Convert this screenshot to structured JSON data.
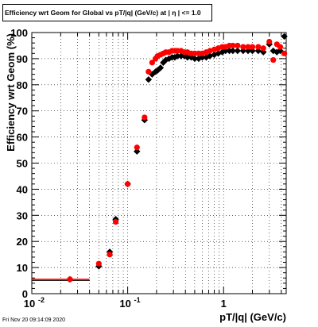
{
  "chart_data": {
    "type": "scatter",
    "title": "Efficiency wrt Geom for Global vs pT/|q| (GeV/c) at | η | <= 1.0",
    "xlabel": "pT/|q| (GeV/c)",
    "ylabel": "Efficiency wrt Geom (%)",
    "xscale": "log",
    "xlim": [
      0.01,
      4.5
    ],
    "ylim": [
      0,
      100
    ],
    "grid": true,
    "x_tick_labels": [
      "10^-2",
      "10^-1",
      "1"
    ],
    "y_tick_labels": [
      "0",
      "10",
      "20",
      "30",
      "40",
      "50",
      "60",
      "70",
      "80",
      "90",
      "100"
    ],
    "series": [
      {
        "color": "#000000",
        "marker": "diamond",
        "points": [
          [
            0.025,
            5.5
          ],
          [
            0.05,
            10.5
          ],
          [
            0.065,
            16
          ],
          [
            0.075,
            28.5
          ],
          [
            0.1,
            42
          ],
          [
            0.125,
            54.5
          ],
          [
            0.15,
            66.5
          ],
          [
            0.165,
            82
          ],
          [
            0.18,
            84
          ],
          [
            0.195,
            85
          ],
          [
            0.205,
            85.5
          ],
          [
            0.22,
            86.5
          ],
          [
            0.235,
            88.5
          ],
          [
            0.25,
            89.5
          ],
          [
            0.27,
            90
          ],
          [
            0.29,
            90.5
          ],
          [
            0.31,
            90.5
          ],
          [
            0.33,
            91
          ],
          [
            0.36,
            91
          ],
          [
            0.39,
            91
          ],
          [
            0.42,
            90.5
          ],
          [
            0.46,
            90.5
          ],
          [
            0.5,
            90
          ],
          [
            0.55,
            90
          ],
          [
            0.6,
            90.5
          ],
          [
            0.66,
            90.5
          ],
          [
            0.72,
            91
          ],
          [
            0.8,
            91.5
          ],
          [
            0.88,
            92
          ],
          [
            0.97,
            92.5
          ],
          [
            1.05,
            93
          ],
          [
            1.15,
            93
          ],
          [
            1.25,
            93
          ],
          [
            1.4,
            93
          ],
          [
            1.6,
            93
          ],
          [
            1.8,
            93
          ],
          [
            2.0,
            93
          ],
          [
            2.3,
            93
          ],
          [
            2.6,
            92.5
          ],
          [
            3.0,
            95.5
          ],
          [
            3.3,
            93
          ],
          [
            3.6,
            92.5
          ],
          [
            3.9,
            93
          ],
          [
            4.3,
            98.5
          ]
        ]
      },
      {
        "color": "#ff0000",
        "marker": "circle",
        "points": [
          [
            0.025,
            5.5
          ],
          [
            0.05,
            11.5
          ],
          [
            0.065,
            15
          ],
          [
            0.075,
            27.5
          ],
          [
            0.1,
            42
          ],
          [
            0.125,
            56
          ],
          [
            0.15,
            67.5
          ],
          [
            0.165,
            85
          ],
          [
            0.18,
            88.5
          ],
          [
            0.195,
            90
          ],
          [
            0.205,
            91
          ],
          [
            0.22,
            91.5
          ],
          [
            0.235,
            92
          ],
          [
            0.25,
            92.5
          ],
          [
            0.27,
            92.5
          ],
          [
            0.29,
            93
          ],
          [
            0.31,
            93
          ],
          [
            0.33,
            93
          ],
          [
            0.36,
            93
          ],
          [
            0.39,
            92.5
          ],
          [
            0.42,
            92.5
          ],
          [
            0.46,
            92
          ],
          [
            0.5,
            92
          ],
          [
            0.55,
            92
          ],
          [
            0.6,
            92
          ],
          [
            0.66,
            92.5
          ],
          [
            0.72,
            93
          ],
          [
            0.8,
            93.5
          ],
          [
            0.88,
            94
          ],
          [
            0.97,
            94.5
          ],
          [
            1.05,
            94.5
          ],
          [
            1.15,
            95
          ],
          [
            1.25,
            95
          ],
          [
            1.4,
            95
          ],
          [
            1.6,
            94.5
          ],
          [
            1.8,
            94.5
          ],
          [
            2.0,
            94.5
          ],
          [
            2.3,
            94.5
          ],
          [
            2.6,
            94
          ],
          [
            3.0,
            96.5
          ],
          [
            3.3,
            89.5
          ],
          [
            3.6,
            95.5
          ],
          [
            3.9,
            94.5
          ],
          [
            4.3,
            92
          ]
        ]
      }
    ],
    "x_error_bar_first_point": [
      0.01,
      0.04
    ]
  },
  "timestamp": "Fri Nov 20 09:14:09 2020"
}
